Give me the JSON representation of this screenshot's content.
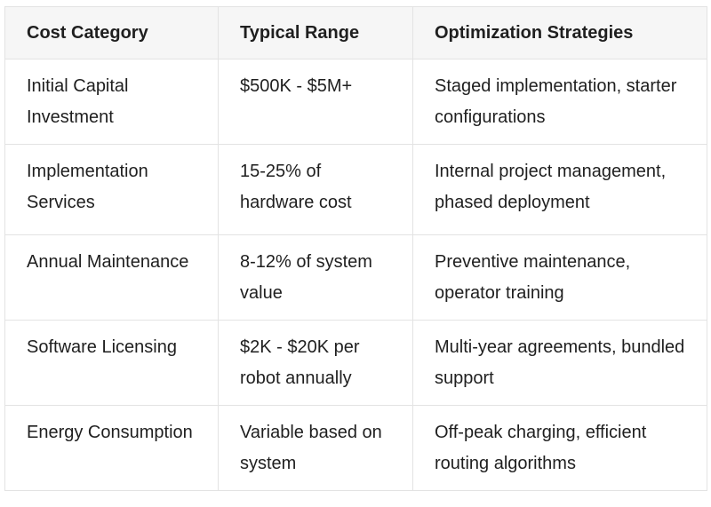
{
  "table": {
    "headers": [
      "Cost Category",
      "Typical Range",
      "Optimization Strategies"
    ],
    "rows": [
      [
        "Initial Capital Investment",
        "$500K - $5M+",
        "Staged implementation, starter configurations"
      ],
      [
        "Implementation Services",
        "15-25% of hardware cost",
        "Internal project management, phased deployment"
      ],
      [
        "Annual Maintenance",
        "8-12% of system value",
        "Preventive maintenance, operator training"
      ],
      [
        "Software Licensing",
        "$2K - $20K per robot annually",
        "Multi-year agreements, bundled support"
      ],
      [
        "Energy Consumption",
        "Variable based on system",
        "Off-peak charging, efficient routing algorithms"
      ]
    ]
  }
}
